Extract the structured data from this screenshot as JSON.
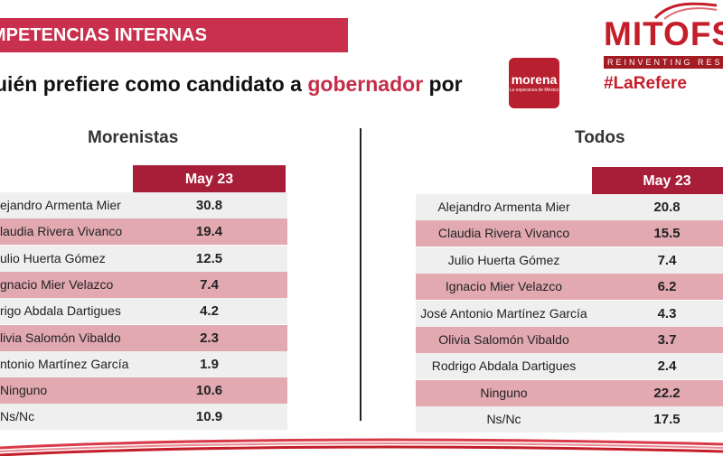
{
  "header": {
    "banner": "MPETENCIAS INTERNAS",
    "question_prefix": "uién prefiere como candidato a ",
    "question_highlight": "gobernador",
    "question_suffix": " por"
  },
  "logo": {
    "name": "morena",
    "tagline": "La esperanza de México"
  },
  "brand": {
    "name": "MITOFSK",
    "tagline": "REINVENTING RESE",
    "hashtag": "#LaRefere",
    "color": "#c41e2a"
  },
  "left": {
    "title": "Morenistas",
    "column": "May 23",
    "rows": [
      {
        "name": "ejandro Armenta Mier",
        "value": "30.8"
      },
      {
        "name": "laudia Rivera Vivanco",
        "value": "19.4"
      },
      {
        "name": "ulio Huerta Gómez",
        "value": "12.5"
      },
      {
        "name": "gnacio Mier Velazco",
        "value": "7.4"
      },
      {
        "name": "rigo Abdala Dartigues",
        "value": "4.2"
      },
      {
        "name": "livia Salomón Vibaldo",
        "value": "2.3"
      },
      {
        "name": "ntonio Martínez García",
        "value": "1.9"
      },
      {
        "name": "Ninguno",
        "value": "10.6"
      },
      {
        "name": "Ns/Nc",
        "value": "10.9"
      }
    ]
  },
  "right": {
    "title": "Todos",
    "column": "May 23",
    "rows": [
      {
        "name": "Alejandro Armenta Mier",
        "value": "20.8"
      },
      {
        "name": "Claudia Rivera Vivanco",
        "value": "15.5"
      },
      {
        "name": "Julio Huerta Gómez",
        "value": "7.4"
      },
      {
        "name": "Ignacio Mier Velazco",
        "value": "6.2"
      },
      {
        "name": "José Antonio Martínez García",
        "value": "4.3"
      },
      {
        "name": "Olivia Salomón Vibaldo",
        "value": "3.7"
      },
      {
        "name": "Rodrigo Abdala Dartigues",
        "value": "2.4"
      },
      {
        "name": "Ninguno",
        "value": "22.2"
      },
      {
        "name": "Ns/Nc",
        "value": "17.5"
      }
    ]
  },
  "colors": {
    "accent": "#c9304d",
    "header_cell": "#a81d38",
    "row_light": "#f5dde0",
    "row_dark": "#e2a9b1"
  }
}
